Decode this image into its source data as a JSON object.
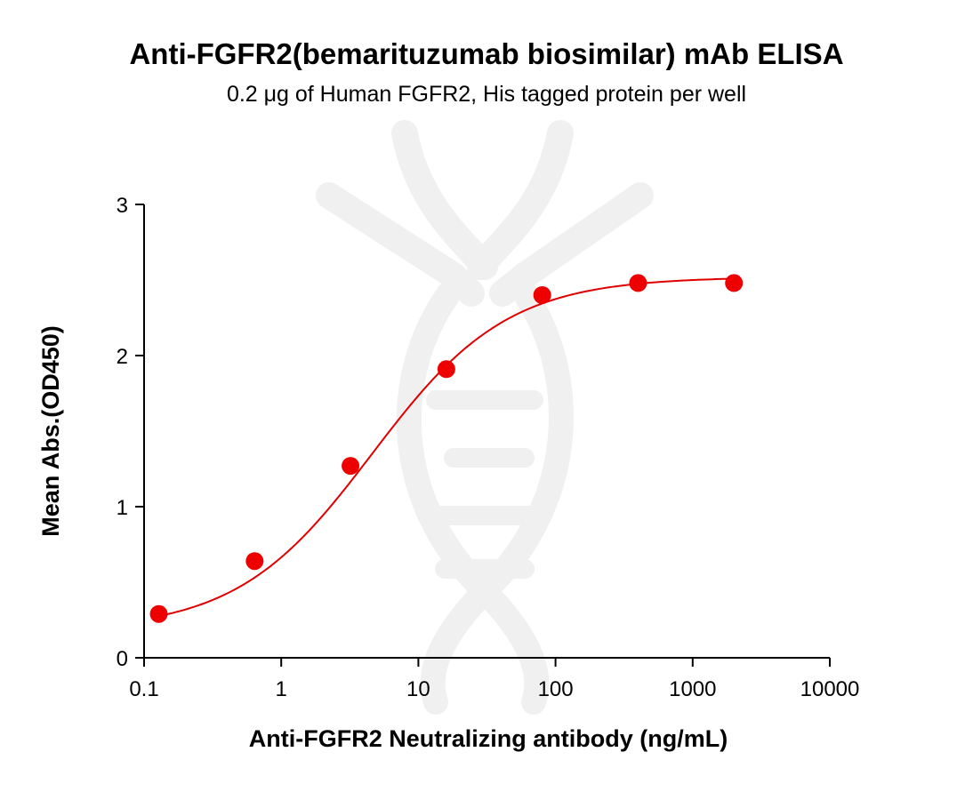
{
  "chart_data": {
    "type": "scatter",
    "title": "Anti-FGFR2(bemarituzumab biosimilar) mAb ELISA",
    "subtitle": "0.2 μg of Human FGFR2, His tagged protein per well",
    "xlabel": "Anti-FGFR2 Neutralizing antibody (ng/mL)",
    "ylabel": "Mean Abs.(OD450)",
    "xscale": "log",
    "xlim": [
      0.1,
      10000
    ],
    "ylim": [
      0,
      3
    ],
    "xticks": [
      {
        "value": 0.1,
        "label": "0.1"
      },
      {
        "value": 1,
        "label": "1"
      },
      {
        "value": 10,
        "label": "10"
      },
      {
        "value": 100,
        "label": "100"
      },
      {
        "value": 1000,
        "label": "1000"
      },
      {
        "value": 10000,
        "label": "10000"
      }
    ],
    "yticks": [
      {
        "value": 0,
        "label": "0"
      },
      {
        "value": 1,
        "label": "1"
      },
      {
        "value": 2,
        "label": "2"
      },
      {
        "value": 3,
        "label": "3"
      }
    ],
    "series": [
      {
        "x": [
          0.128,
          0.64,
          3.2,
          16,
          80,
          400,
          2000
        ],
        "y": [
          0.29,
          0.64,
          1.27,
          1.91,
          2.4,
          2.48,
          2.48
        ]
      }
    ],
    "fit": {
      "type": "4PL",
      "bottom": 0.18,
      "top": 2.52,
      "ec50": 4.6,
      "hill": 0.88
    },
    "marker_color": "#ee0000",
    "line_color": "#e00000",
    "grid": false,
    "legend": "none"
  }
}
